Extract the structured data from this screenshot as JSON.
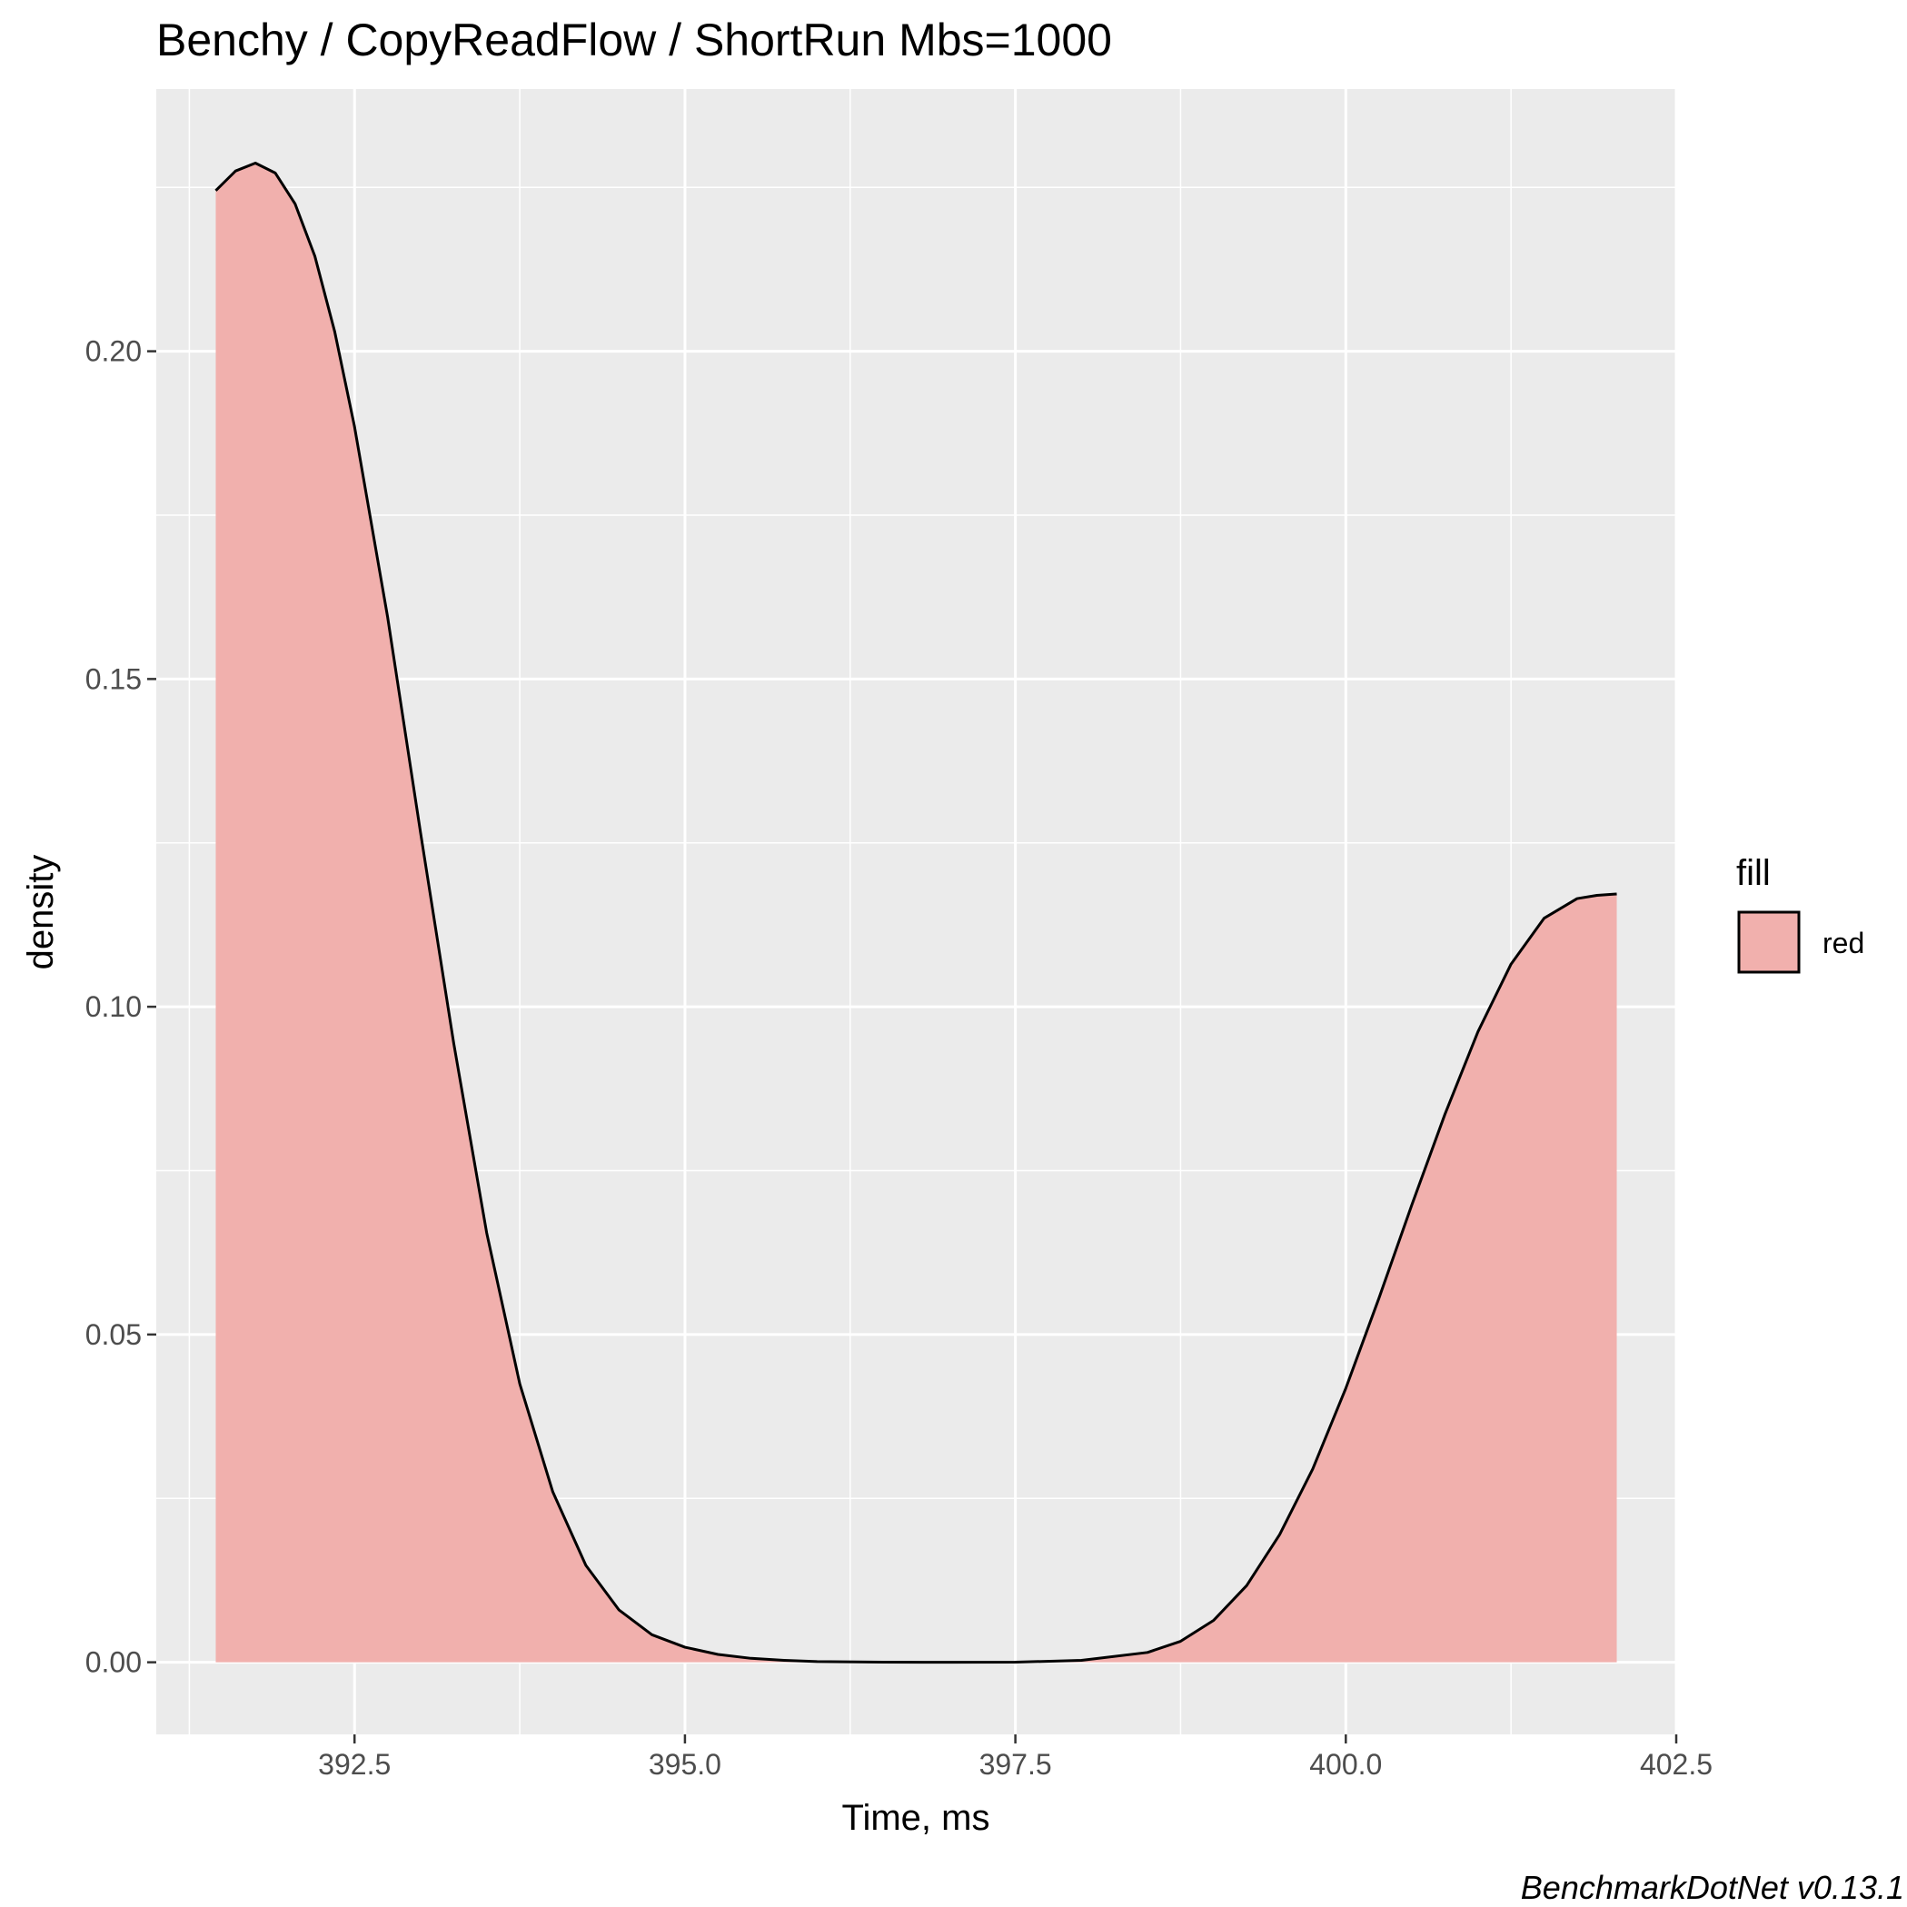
{
  "chart_data": {
    "type": "area",
    "title": "Benchy / CopyReadFlow / ShortRun Mbs=1000",
    "xlabel": "Time, ms",
    "ylabel": "density",
    "xlim": [
      391.0,
      402.5
    ],
    "ylim": [
      -0.011,
      0.24
    ],
    "x_ticks": [
      "392.5",
      "395.0",
      "397.5",
      "400.0",
      "402.5"
    ],
    "y_ticks": [
      "0.00",
      "0.05",
      "0.10",
      "0.15",
      "0.20"
    ],
    "grid": true,
    "legend_position": "right",
    "legend": {
      "title": "fill",
      "entries": [
        "red"
      ]
    },
    "fill_color": "#f1b0ad",
    "line_color": "#000000",
    "panel_background": "#ebebeb",
    "caption": "BenchmarkDotNet v0.13.1",
    "series": [
      {
        "name": "red",
        "x": [
          391.45,
          391.6,
          391.75,
          391.9,
          392.05,
          392.2,
          392.35,
          392.5,
          392.75,
          393.0,
          393.25,
          393.5,
          393.75,
          394.0,
          394.25,
          394.5,
          394.75,
          395.0,
          395.25,
          395.5,
          395.75,
          396.0,
          396.5,
          397.0,
          397.5,
          398.0,
          398.5,
          398.75,
          399.0,
          399.25,
          399.5,
          399.75,
          400.0,
          400.25,
          400.5,
          400.75,
          401.0,
          401.25,
          401.5,
          401.75,
          401.9,
          402.05
        ],
        "y": [
          0.2245,
          0.2275,
          0.2287,
          0.2272,
          0.2225,
          0.2145,
          0.203,
          0.1885,
          0.1595,
          0.1265,
          0.0945,
          0.0655,
          0.0425,
          0.026,
          0.0148,
          0.008,
          0.0042,
          0.0023,
          0.0012,
          0.0006,
          0.0003,
          0.0001,
          2e-05,
          0.0,
          1e-05,
          0.0003,
          0.0015,
          0.0032,
          0.0064,
          0.0117,
          0.0195,
          0.0295,
          0.0418,
          0.0555,
          0.0698,
          0.0836,
          0.0962,
          0.1065,
          0.1135,
          0.1165,
          0.117,
          0.1172
        ]
      }
    ]
  }
}
